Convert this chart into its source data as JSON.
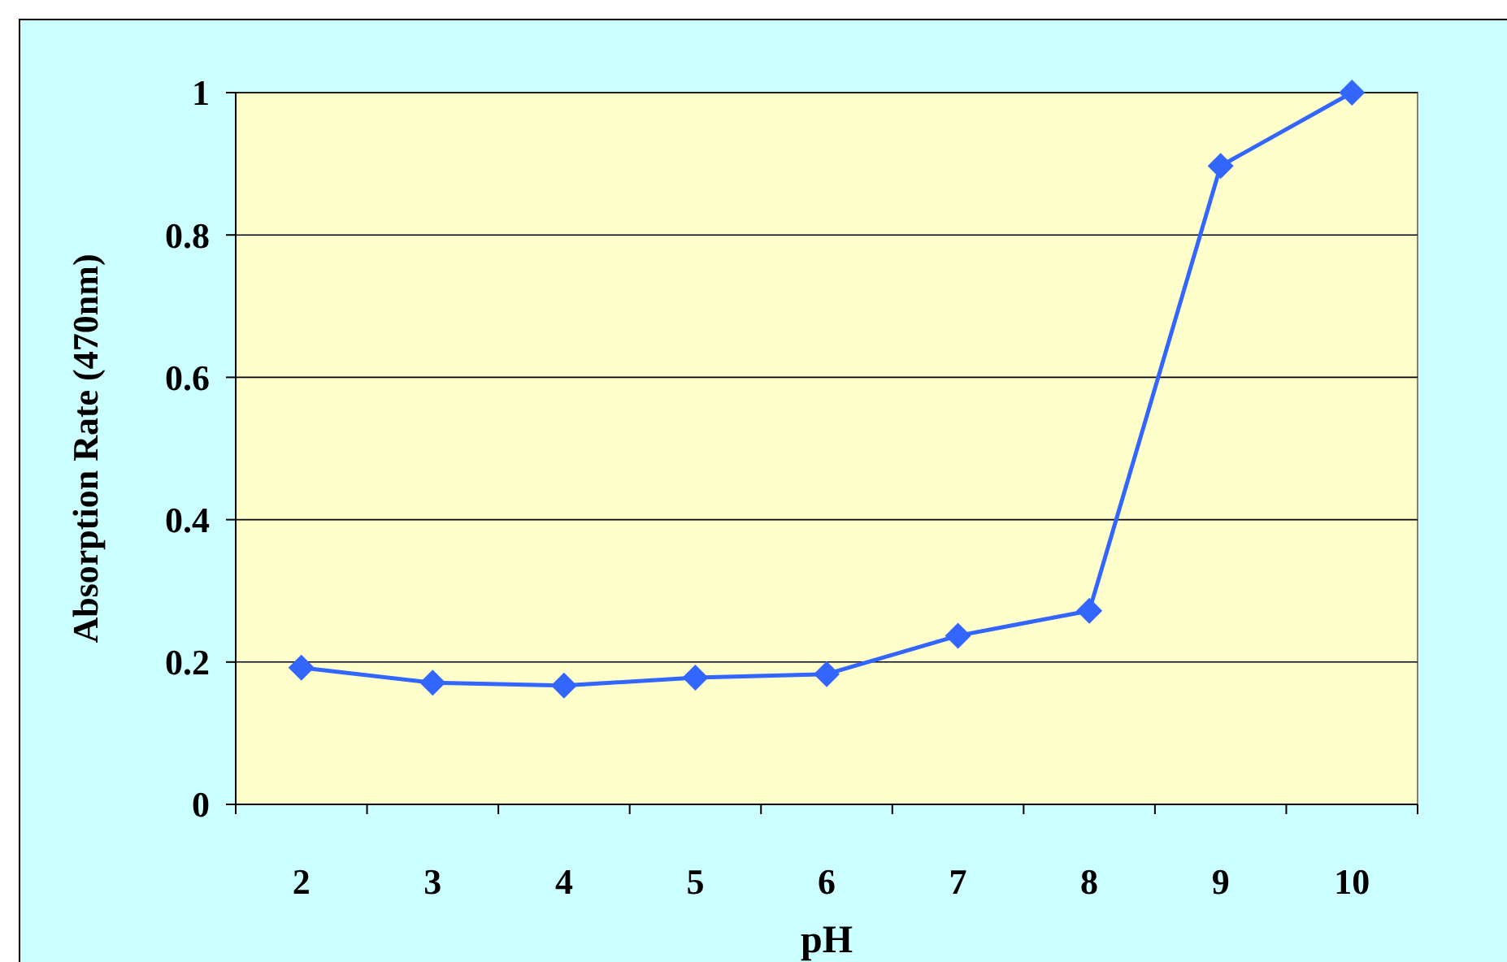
{
  "chart_data": {
    "type": "line",
    "xlabel": "pH",
    "ylabel": "Absorption Rate (470nm)",
    "categories": [
      "2",
      "3",
      "4",
      "5",
      "6",
      "7",
      "8",
      "9",
      "10"
    ],
    "series": [
      {
        "color": "#3366ff",
        "values": [
          0.192,
          0.171,
          0.167,
          0.178,
          0.183,
          0.237,
          0.272,
          0.897,
          1.0
        ]
      }
    ],
    "ylim": [
      0,
      1
    ],
    "yticks": [
      0,
      0.2,
      0.4,
      0.6,
      0.8,
      1
    ],
    "grid": "y",
    "marker": "diamond",
    "line_style": "solid"
  }
}
